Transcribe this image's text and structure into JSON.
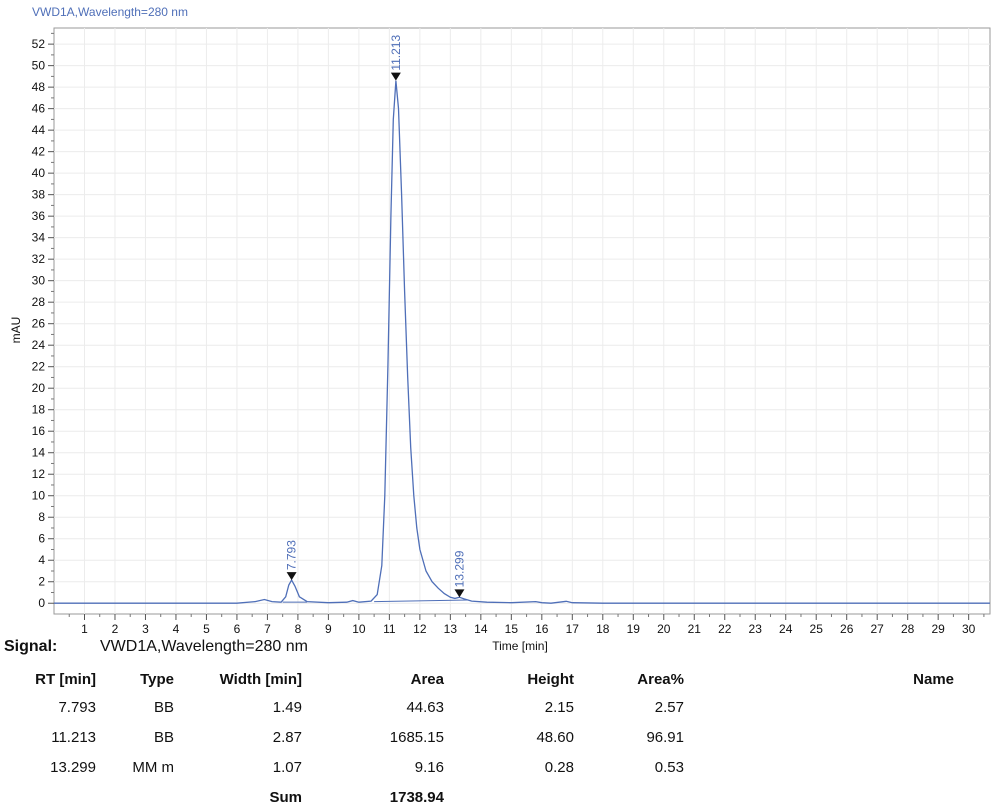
{
  "chart_data": {
    "type": "line",
    "title": "VWD1A,Wavelength=280 nm",
    "xlabel": "Time [min]",
    "ylabel": "mAU",
    "xlim": [
      0,
      30.7
    ],
    "ylim": [
      -1,
      53.5
    ],
    "xticks": [
      1,
      2,
      3,
      4,
      5,
      6,
      7,
      8,
      9,
      10,
      11,
      12,
      13,
      14,
      15,
      16,
      17,
      18,
      19,
      20,
      21,
      22,
      23,
      24,
      25,
      26,
      27,
      28,
      29,
      30
    ],
    "yticks": [
      0,
      2,
      4,
      6,
      8,
      10,
      12,
      14,
      16,
      18,
      20,
      22,
      24,
      26,
      28,
      30,
      32,
      34,
      36,
      38,
      40,
      42,
      44,
      46,
      48,
      50,
      52
    ],
    "grid": true,
    "line_color": "#4f6fb8",
    "trace": [
      [
        0,
        0.0
      ],
      [
        6.0,
        0.0
      ],
      [
        6.6,
        0.15
      ],
      [
        6.9,
        0.35
      ],
      [
        7.15,
        0.15
      ],
      [
        7.45,
        0.1
      ],
      [
        7.6,
        0.6
      ],
      [
        7.7,
        1.7
      ],
      [
        7.793,
        2.15
      ],
      [
        7.9,
        1.6
      ],
      [
        8.05,
        0.6
      ],
      [
        8.3,
        0.15
      ],
      [
        9.0,
        0.05
      ],
      [
        9.6,
        0.1
      ],
      [
        9.8,
        0.25
      ],
      [
        10.0,
        0.1
      ],
      [
        10.4,
        0.2
      ],
      [
        10.6,
        0.8
      ],
      [
        10.75,
        3.5
      ],
      [
        10.85,
        10
      ],
      [
        10.95,
        22
      ],
      [
        11.05,
        36
      ],
      [
        11.13,
        45
      ],
      [
        11.213,
        48.6
      ],
      [
        11.3,
        46
      ],
      [
        11.4,
        38
      ],
      [
        11.5,
        29
      ],
      [
        11.6,
        21
      ],
      [
        11.7,
        14.5
      ],
      [
        11.8,
        10
      ],
      [
        11.9,
        7
      ],
      [
        12.0,
        5
      ],
      [
        12.2,
        3
      ],
      [
        12.4,
        2
      ],
      [
        12.6,
        1.4
      ],
      [
        12.8,
        0.9
      ],
      [
        13.0,
        0.55
      ],
      [
        13.15,
        0.45
      ],
      [
        13.299,
        0.55
      ],
      [
        13.45,
        0.4
      ],
      [
        13.7,
        0.2
      ],
      [
        14.2,
        0.1
      ],
      [
        15.0,
        0.05
      ],
      [
        15.8,
        0.15
      ],
      [
        16.0,
        0.05
      ],
      [
        16.3,
        0.0
      ],
      [
        16.8,
        0.18
      ],
      [
        17.0,
        0.05
      ],
      [
        18.0,
        0.0
      ],
      [
        30.7,
        0.0
      ]
    ],
    "peaks": [
      {
        "rt": 7.793,
        "label": "7.793",
        "y": 2.15
      },
      {
        "rt": 11.213,
        "label": "11.213",
        "y": 48.6
      },
      {
        "rt": 13.299,
        "label": "13.299",
        "y": 0.55
      }
    ],
    "baseline": [
      [
        7.5,
        0.1
      ],
      [
        8.3,
        0.1
      ]
    ],
    "baseline2": [
      [
        10.5,
        0.15
      ],
      [
        13.6,
        0.3
      ]
    ]
  },
  "signal": {
    "key": "Signal:",
    "value": "VWD1A,Wavelength=280 nm"
  },
  "table": {
    "headers": {
      "rt": "RT [min]",
      "type": "Type",
      "width": "Width [min]",
      "area": "Area",
      "height": "Height",
      "pct": "Area%",
      "name": "Name"
    },
    "rows": [
      {
        "rt": "7.793",
        "type": "BB",
        "width": "1.49",
        "area": "44.63",
        "height": "2.15",
        "pct": "2.57",
        "name": ""
      },
      {
        "rt": "11.213",
        "type": "BB",
        "width": "2.87",
        "area": "1685.15",
        "height": "48.60",
        "pct": "96.91",
        "name": ""
      },
      {
        "rt": "13.299",
        "type": "MM m",
        "width": "1.07",
        "area": "9.16",
        "height": "0.28",
        "pct": "0.53",
        "name": ""
      }
    ],
    "sum_label": "Sum",
    "sum_value": "1738.94"
  }
}
